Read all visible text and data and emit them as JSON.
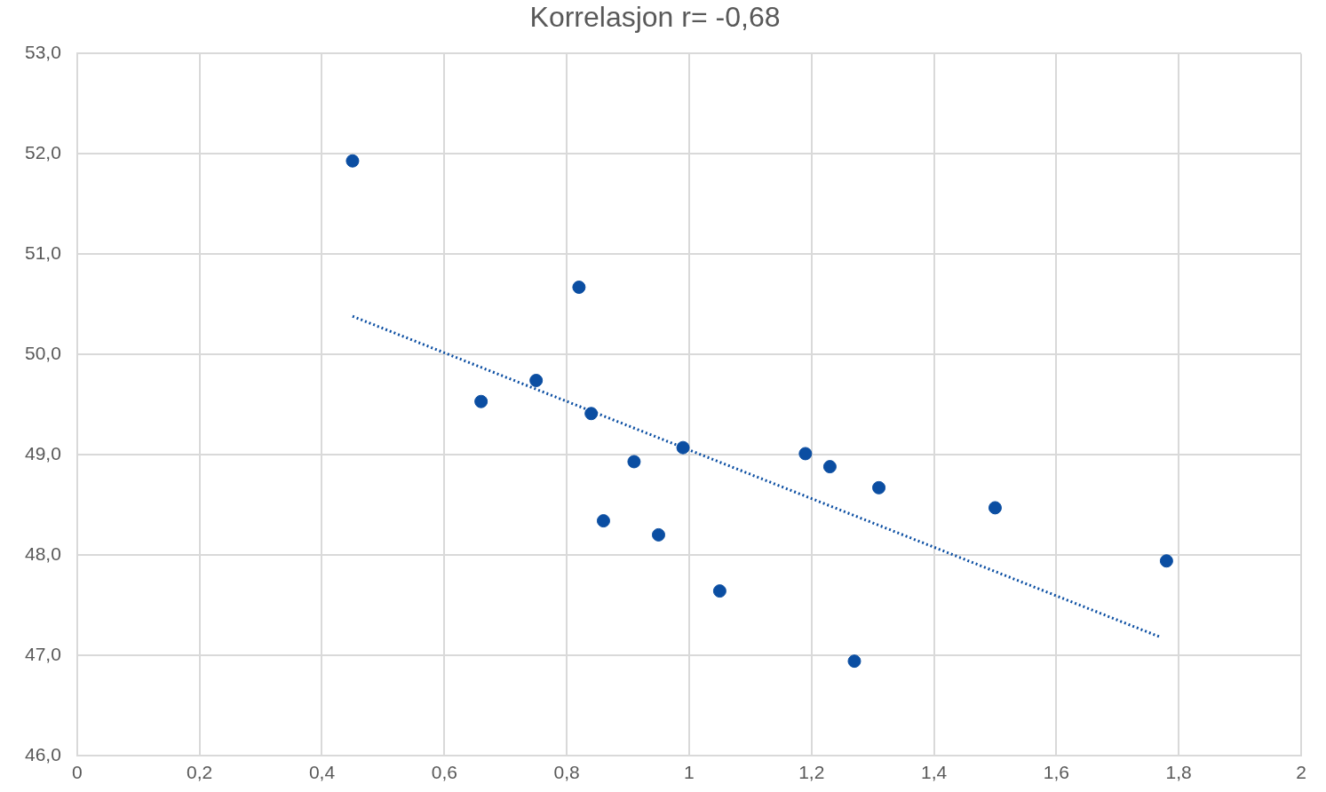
{
  "chart_data": {
    "type": "scatter",
    "title": "Korrelasjon r= -0,68",
    "series": [
      {
        "color": "#0b4ea2",
        "marker": "circle",
        "x": [
          0.45,
          0.82,
          0.66,
          0.75,
          0.84,
          0.86,
          0.91,
          0.95,
          0.99,
          1.05,
          1.19,
          1.23,
          1.27,
          1.31,
          1.5,
          1.78
        ],
        "values": [
          51.93,
          50.67,
          49.53,
          49.74,
          49.41,
          48.34,
          48.93,
          48.2,
          49.07,
          47.64,
          49.01,
          48.88,
          46.94,
          48.67,
          48.47,
          47.94
        ]
      },
      {
        "type": "line",
        "color": "#0b4ea2",
        "line_style": "dotted",
        "marker": "none",
        "x": [
          0.45,
          1.77
        ],
        "values": [
          50.38,
          47.18
        ]
      }
    ],
    "xlim": [
      0,
      2
    ],
    "xticks": [
      0,
      {
        "value": 0.2,
        "label": "0,2"
      },
      {
        "value": 0.4,
        "label": "0,4"
      },
      {
        "value": 0.6,
        "label": "0,6"
      },
      {
        "value": 0.8,
        "label": "0,8"
      },
      1,
      {
        "value": 1.2,
        "label": "1,2"
      },
      {
        "value": 1.4,
        "label": "1,4"
      },
      {
        "value": 1.6,
        "label": "1,6"
      },
      {
        "value": 1.8,
        "label": "1,8"
      },
      2
    ],
    "ylim": [
      46,
      53
    ],
    "yticks": [
      {
        "value": 46,
        "label": "46,0"
      },
      {
        "value": 47,
        "label": "47,0"
      },
      {
        "value": 48,
        "label": "48,0"
      },
      {
        "value": 49,
        "label": "49,0"
      },
      {
        "value": 50,
        "label": "50,0"
      },
      {
        "value": 51,
        "label": "51,0"
      },
      {
        "value": 52,
        "label": "52,0"
      },
      {
        "value": 53,
        "label": "53,0"
      }
    ],
    "grid": true,
    "legend": false
  }
}
